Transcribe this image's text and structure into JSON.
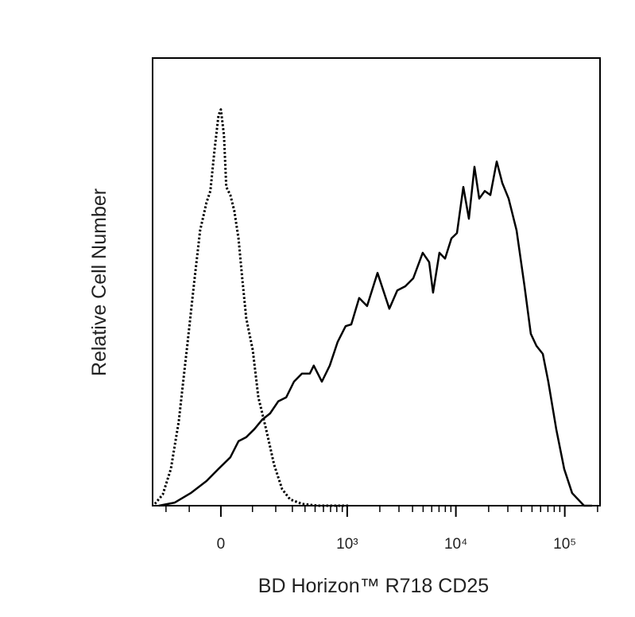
{
  "chart_data": {
    "type": "histogram-overlay",
    "xlabel": "BD Horizon™ R718 CD25",
    "ylabel": "Relative Cell Number",
    "xscale": "biexponential",
    "xlim": [
      -278,
      210700
    ],
    "ylim": [
      0,
      100
    ],
    "xticks": [
      0,
      {
        "value": 1000,
        "label": "10³"
      },
      {
        "value": 10000,
        "label": "10⁴"
      },
      {
        "value": 100000,
        "label": "10⁵"
      }
    ],
    "xminorticks": [
      -200,
      -100,
      100,
      200,
      300,
      400,
      500,
      600,
      700,
      800,
      900,
      2000,
      3000,
      4000,
      5000,
      6000,
      7000,
      8000,
      9000,
      20000,
      30000,
      40000,
      50000,
      60000,
      70000,
      80000,
      90000,
      200000
    ],
    "series": [
      {
        "color": "#000000",
        "dash": "dotted",
        "x": [
          -263,
          -217,
          -176,
          -141,
          -109,
          -81,
          -63,
          -43,
          -31,
          -19,
          -7,
          0,
          9,
          16,
          28,
          40,
          53,
          65,
          78,
          101,
          122,
          154,
          192,
          235,
          284,
          373,
          531,
          1054
        ],
        "values": [
          0.4,
          2.5,
          8.2,
          18.8,
          34.8,
          50.8,
          61.5,
          67.7,
          70.3,
          79.2,
          87.2,
          88.5,
          82.8,
          71.2,
          69.4,
          65.9,
          59.7,
          50.8,
          41.9,
          34.8,
          24.2,
          17.1,
          9.1,
          3.7,
          1.4,
          0.4,
          0,
          0
        ]
      },
      {
        "color": "#000000",
        "dash": "solid",
        "x": [
          -239,
          -158,
          -95,
          -43,
          -7,
          28,
          53,
          78,
          107,
          137,
          172,
          213,
          259,
          311,
          373,
          445,
          486,
          580,
          688,
          816,
          967,
          1090,
          1290,
          1528,
          1903,
          2449,
          2898,
          3429,
          4059,
          4962,
          5685,
          6172,
          7061,
          7951,
          9091,
          10230,
          11704,
          13163,
          14804,
          16374,
          18418,
          20725,
          23700,
          26660,
          30497,
          36071,
          42673,
          48789,
          54905,
          62828,
          70612,
          83539,
          98829,
          116899,
          150259,
          177781
        ],
        "values": [
          0,
          0.7,
          2.8,
          5.5,
          8.2,
          10.8,
          14.4,
          15.3,
          17.1,
          19.2,
          20.6,
          23.3,
          24.2,
          27.7,
          29.5,
          29.5,
          31.3,
          27.7,
          31.3,
          36.6,
          40.1,
          40.5,
          46.4,
          44.6,
          52.0,
          44.0,
          48.1,
          49.0,
          50.8,
          56.5,
          54.4,
          47.6,
          56.5,
          55.2,
          59.7,
          60.9,
          71.2,
          64.1,
          75.7,
          68.6,
          70.3,
          69.4,
          76.9,
          72.1,
          68.6,
          61.5,
          49.0,
          38.4,
          35.7,
          33.9,
          27.7,
          17.1,
          8.2,
          2.8,
          0,
          0
        ]
      }
    ]
  }
}
